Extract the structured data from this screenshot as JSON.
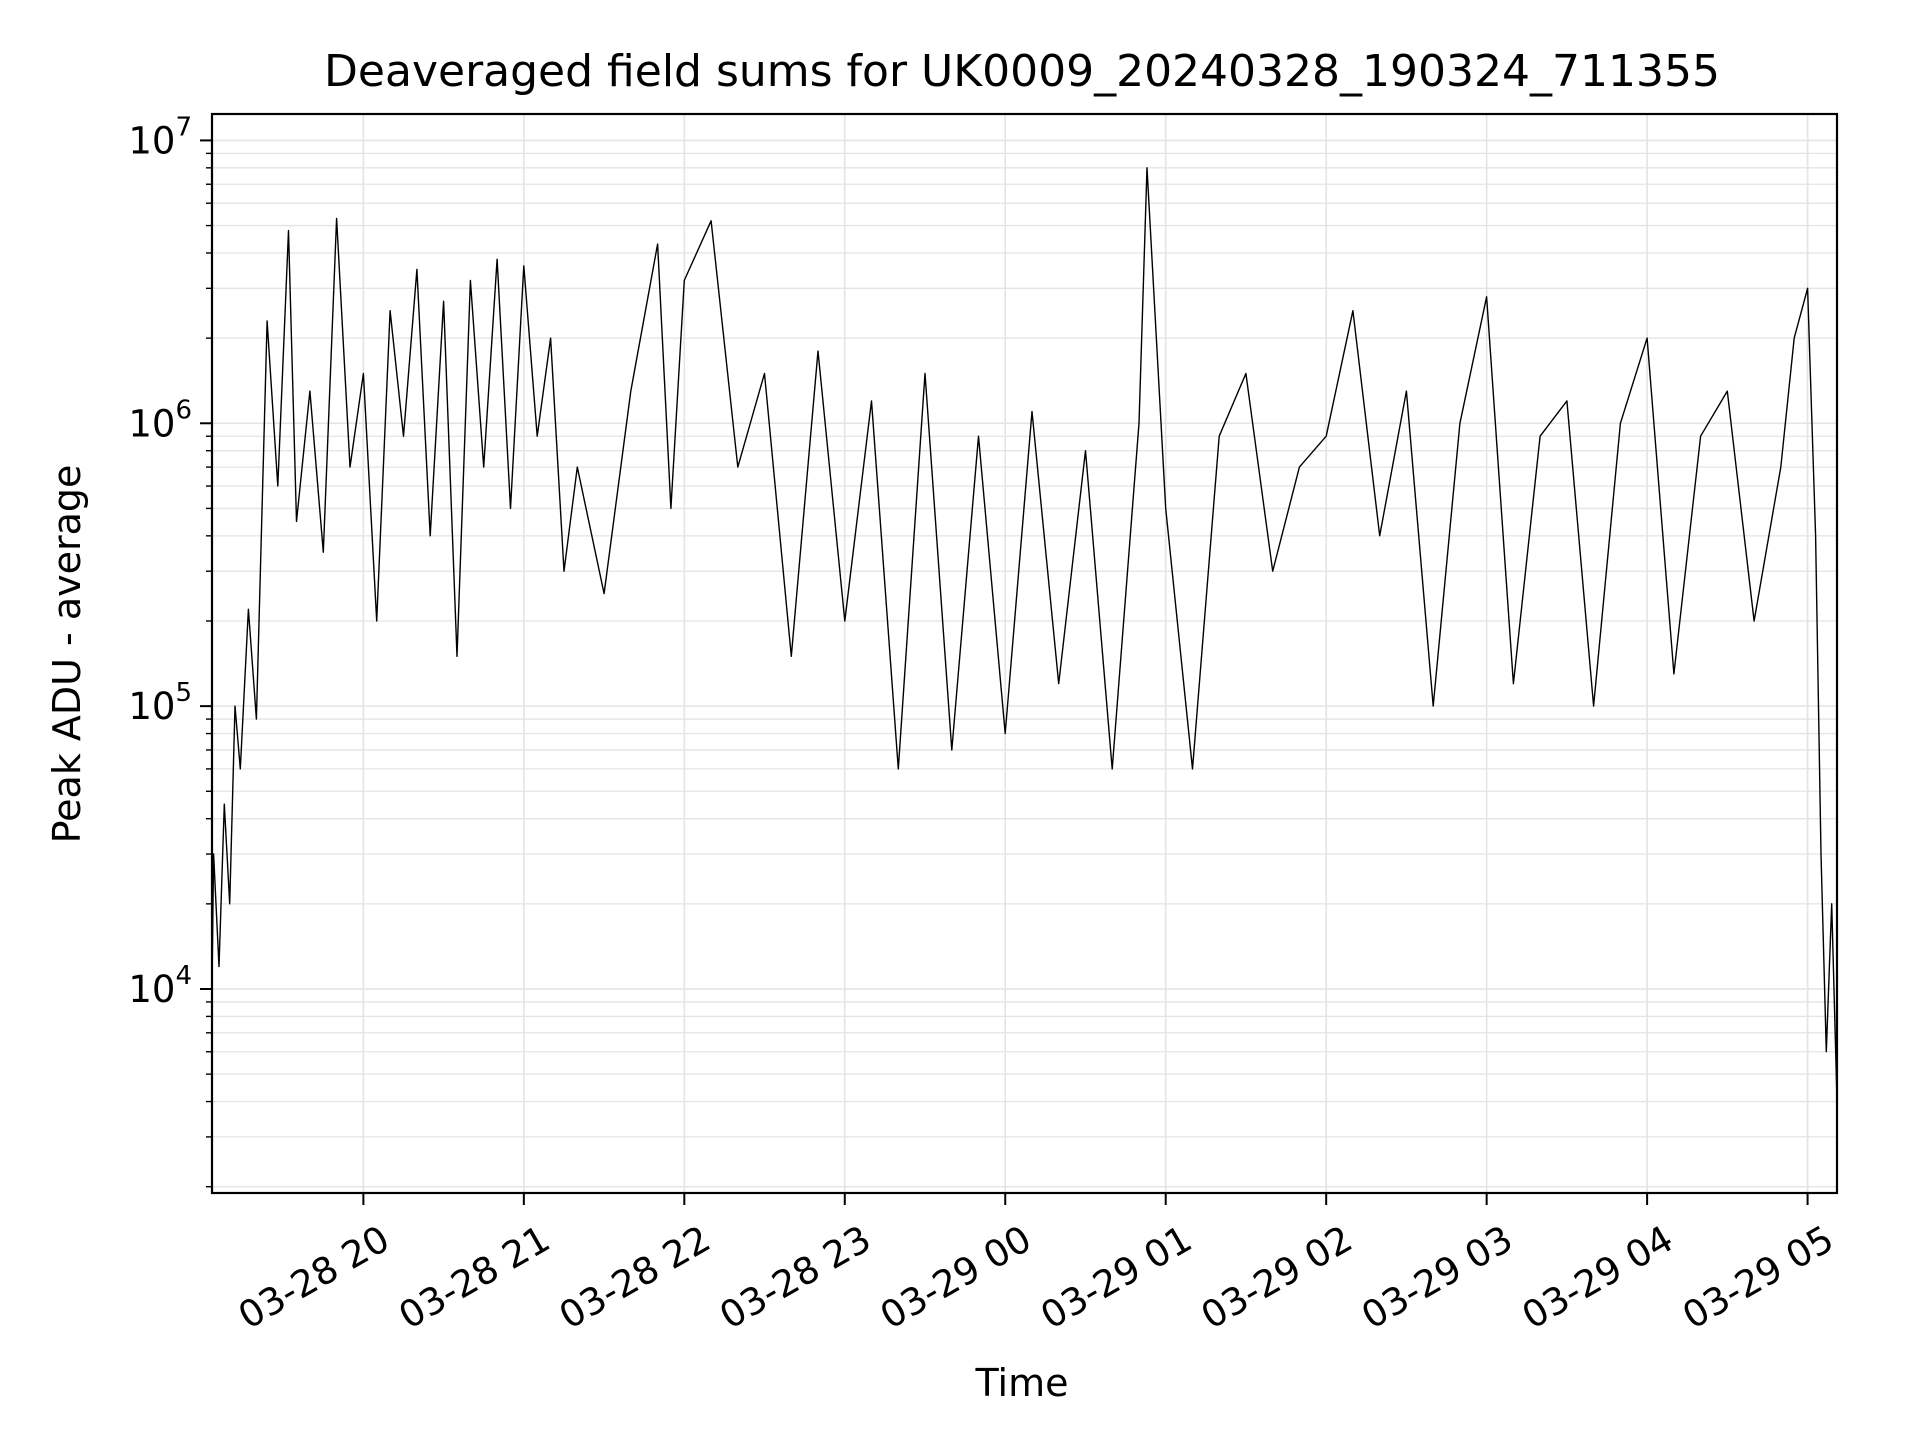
{
  "chart_data": {
    "type": "line",
    "title": "Deaveraged field sums for UK0009_20240328_190324_711355",
    "xlabel": "Time",
    "ylabel": "Peak ADU - average",
    "x_scale": "time",
    "y_scale": "log",
    "xlim": [
      "2024-03-28 19:03:24",
      "2024-03-29 05:11:00"
    ],
    "ylim": [
      1900,
      12400000
    ],
    "x_tick_labels": [
      "03-28 20",
      "03-28 21",
      "03-28 22",
      "03-28 23",
      "03-29 00",
      "03-29 01",
      "03-29 02",
      "03-29 03",
      "03-29 04",
      "03-29 05"
    ],
    "y_tick_labels": [
      {
        "base": "10",
        "exp": "4",
        "value": 10000
      },
      {
        "base": "10",
        "exp": "5",
        "value": 100000
      },
      {
        "base": "10",
        "exp": "6",
        "value": 1000000
      },
      {
        "base": "10",
        "exp": "7",
        "value": 10000000
      }
    ],
    "grid": true,
    "line_color": "#000000",
    "series": [
      {
        "x": [
          "2024-03-28 19:03:24",
          "2024-03-28 19:04:00",
          "2024-03-28 19:06:00",
          "2024-03-28 19:08:00",
          "2024-03-28 19:10:00",
          "2024-03-28 19:12:00",
          "2024-03-28 19:14:00",
          "2024-03-28 19:17:00",
          "2024-03-28 19:20:00",
          "2024-03-28 19:24:00",
          "2024-03-28 19:28:00",
          "2024-03-28 19:32:00",
          "2024-03-28 19:35:00",
          "2024-03-28 19:40:00",
          "2024-03-28 19:45:00",
          "2024-03-28 19:50:00",
          "2024-03-28 19:55:00",
          "2024-03-28 20:00:00",
          "2024-03-28 20:05:00",
          "2024-03-28 20:10:00",
          "2024-03-28 20:15:00",
          "2024-03-28 20:20:00",
          "2024-03-28 20:25:00",
          "2024-03-28 20:30:00",
          "2024-03-28 20:35:00",
          "2024-03-28 20:40:00",
          "2024-03-28 20:45:00",
          "2024-03-28 20:50:00",
          "2024-03-28 20:55:00",
          "2024-03-28 21:00:00",
          "2024-03-28 21:05:00",
          "2024-03-28 21:10:00",
          "2024-03-28 21:15:00",
          "2024-03-28 21:20:00",
          "2024-03-28 21:30:00",
          "2024-03-28 21:40:00",
          "2024-03-28 21:50:00",
          "2024-03-28 21:55:00",
          "2024-03-28 22:00:00",
          "2024-03-28 22:10:00",
          "2024-03-28 22:20:00",
          "2024-03-28 22:30:00",
          "2024-03-28 22:40:00",
          "2024-03-28 22:50:00",
          "2024-03-28 23:00:00",
          "2024-03-28 23:10:00",
          "2024-03-28 23:20:00",
          "2024-03-28 23:30:00",
          "2024-03-28 23:40:00",
          "2024-03-28 23:50:00",
          "2024-03-29 00:00:00",
          "2024-03-29 00:10:00",
          "2024-03-29 00:20:00",
          "2024-03-29 00:30:00",
          "2024-03-29 00:40:00",
          "2024-03-29 00:50:00",
          "2024-03-29 00:53:00",
          "2024-03-29 01:00:00",
          "2024-03-29 01:10:00",
          "2024-03-29 01:20:00",
          "2024-03-29 01:30:00",
          "2024-03-29 01:40:00",
          "2024-03-29 01:50:00",
          "2024-03-29 02:00:00",
          "2024-03-29 02:10:00",
          "2024-03-29 02:20:00",
          "2024-03-29 02:30:00",
          "2024-03-29 02:40:00",
          "2024-03-29 02:50:00",
          "2024-03-29 03:00:00",
          "2024-03-29 03:10:00",
          "2024-03-29 03:20:00",
          "2024-03-29 03:30:00",
          "2024-03-29 03:40:00",
          "2024-03-29 03:50:00",
          "2024-03-29 04:00:00",
          "2024-03-29 04:10:00",
          "2024-03-29 04:20:00",
          "2024-03-29 04:30:00",
          "2024-03-29 04:40:00",
          "2024-03-29 04:50:00",
          "2024-03-29 04:55:00",
          "2024-03-29 05:00:00",
          "2024-03-29 05:03:00",
          "2024-03-29 05:05:00",
          "2024-03-29 05:07:00",
          "2024-03-29 05:09:00",
          "2024-03-29 05:11:00"
        ],
        "y": [
          10000,
          30000,
          12000,
          45000,
          20000,
          100000,
          60000,
          220000,
          90000,
          2300000,
          600000,
          4800000,
          450000,
          1300000,
          350000,
          5300000,
          700000,
          1500000,
          200000,
          2500000,
          900000,
          3500000,
          400000,
          2700000,
          150000,
          3200000,
          700000,
          3800000,
          500000,
          3600000,
          900000,
          2000000,
          300000,
          700000,
          250000,
          1300000,
          4300000,
          500000,
          3200000,
          5200000,
          700000,
          1500000,
          150000,
          1800000,
          200000,
          1200000,
          60000,
          1500000,
          70000,
          900000,
          80000,
          1100000,
          120000,
          800000,
          60000,
          1000000,
          8000000,
          500000,
          60000,
          900000,
          1500000,
          300000,
          700000,
          900000,
          2500000,
          400000,
          1300000,
          100000,
          1000000,
          2800000,
          120000,
          900000,
          1200000,
          100000,
          1000000,
          2000000,
          130000,
          900000,
          1300000,
          200000,
          700000,
          2000000,
          3000000,
          400000,
          30000,
          6000,
          20000,
          4000
        ]
      }
    ]
  }
}
